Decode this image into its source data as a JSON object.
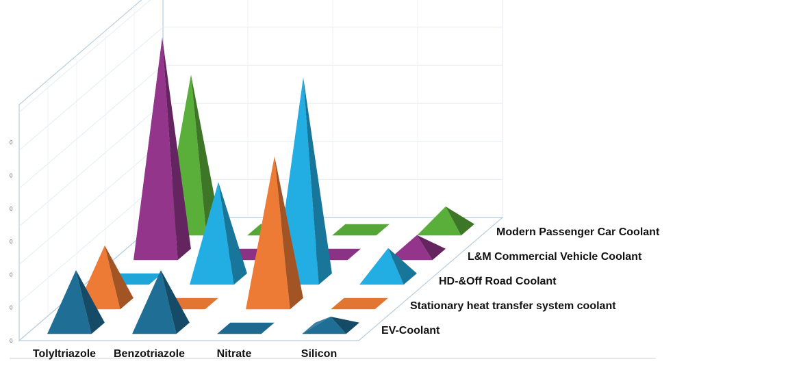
{
  "chart_data": {
    "type": "bar",
    "style": "3d-pyramid",
    "categories": [
      "Tolyltriazole",
      "Benzotriazole",
      "Nitrate",
      "Silicon"
    ],
    "series": [
      {
        "name": "EV-Coolant",
        "color": "#1f6e96",
        "values": [
          1.5,
          1.5,
          0.1,
          0.3
        ]
      },
      {
        "name": "Stationary heat transfer system coolant",
        "color": "#ee7b35",
        "values": [
          1.5,
          0.1,
          3.8,
          0.1
        ]
      },
      {
        "name": "HD-&Off Road Coolant",
        "color": "#22aee3",
        "values": [
          0.1,
          2.5,
          5.2,
          0.8
        ]
      },
      {
        "name": "L&M Commercial Vehicle Coolant",
        "color": "#93358b",
        "values": [
          5.6,
          0.1,
          0.1,
          0.5
        ]
      },
      {
        "name": "Modern Passenger Car Coolant",
        "color": "#5aae3a",
        "values": [
          4.0,
          0.1,
          0.1,
          0.6
        ]
      }
    ],
    "y_ticks": [
      "0",
      "0",
      "0",
      "0",
      "0",
      "0",
      "0"
    ],
    "grid": true,
    "legend": "none"
  }
}
